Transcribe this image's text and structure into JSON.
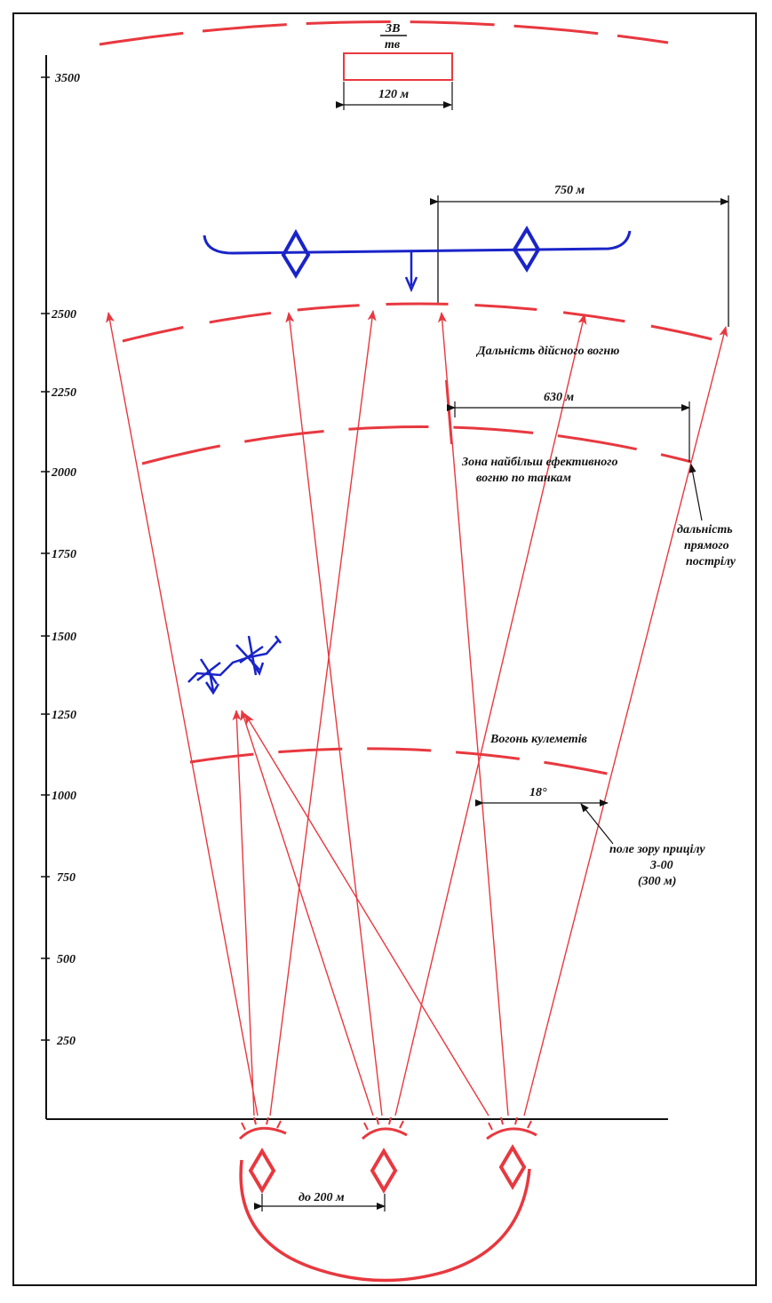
{
  "colors": {
    "red": "#e8383f",
    "blue": "#1a24c8",
    "black": "#111111"
  },
  "axis_ticks": [
    "3500",
    "2500",
    "2250",
    "2000",
    "1750",
    "1500",
    "1250",
    "1000",
    "750",
    "500",
    "250"
  ],
  "labels": {
    "top_fraction_top": "ЗВ",
    "top_fraction_bottom": "тв",
    "target_width": "120 м",
    "front_width": "750 м",
    "effective_range": "Дальність дійсного вогню",
    "direct_shot_width": "630 м",
    "zone_line1": "Зона найбільш ефективного",
    "zone_line2": "вогню по танкам",
    "direct_shot_line1": "дальність",
    "direct_shot_line2": "прямого",
    "direct_shot_line3": "пострілу",
    "mg_fire": "Вогонь кулеметів",
    "angle": "18°",
    "sight_line1": "поле зору прицілу",
    "sight_line2": "3-00",
    "sight_line3": "(300 м)",
    "spacing": "до 200 м"
  },
  "icons": [
    "tank-icon",
    "crosshair-icon",
    "arrow-icon"
  ]
}
